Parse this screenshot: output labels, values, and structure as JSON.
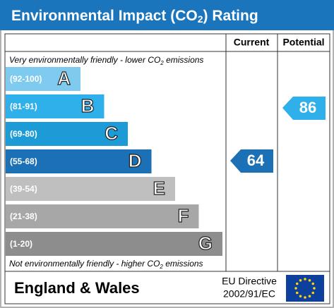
{
  "header": {
    "title": [
      "Environmental Impact (CO",
      "2",
      ") Rating"
    ]
  },
  "columns": {
    "current": "Current",
    "potential": "Potential"
  },
  "top_note": [
    "Very environmentally friendly - lower CO",
    "2",
    " emissions"
  ],
  "bottom_note": [
    "Not environmentally friendly - higher CO",
    "2",
    " emissions"
  ],
  "bands": [
    {
      "range": "(92-100)",
      "letter": "A",
      "color": "#7fcaef"
    },
    {
      "range": "(81-91)",
      "letter": "B",
      "color": "#2fb0ea"
    },
    {
      "range": "(69-80)",
      "letter": "C",
      "color": "#1d9bd7"
    },
    {
      "range": "(55-68)",
      "letter": "D",
      "color": "#1b70b6"
    },
    {
      "range": "(39-54)",
      "letter": "E",
      "color": "#bfbfbf"
    },
    {
      "range": "(21-38)",
      "letter": "F",
      "color": "#a7a7a7"
    },
    {
      "range": "(1-20)",
      "letter": "G",
      "color": "#8d8d8d"
    }
  ],
  "current": {
    "value": 64,
    "color": "#1b70b6"
  },
  "potential": {
    "value": 86,
    "color": "#2fb0ea"
  },
  "footer": {
    "region": "England & Wales",
    "directive": [
      "EU Directive",
      "2002/91/EC"
    ]
  }
}
